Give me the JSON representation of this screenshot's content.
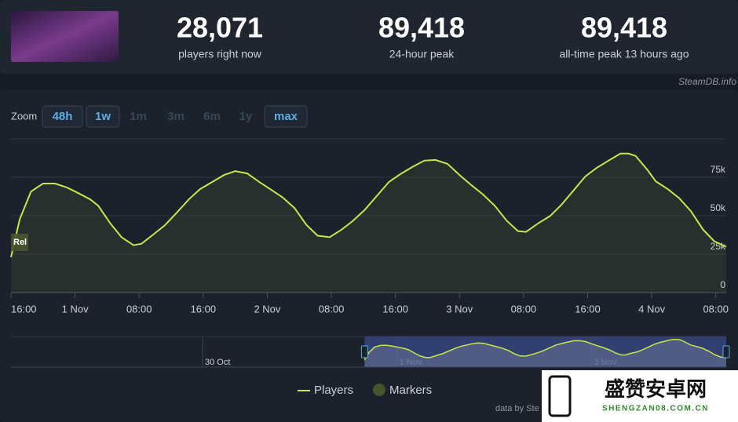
{
  "header": {
    "stats": [
      {
        "value": "28,071",
        "label": "players right now"
      },
      {
        "value": "89,418",
        "label": "24-hour peak"
      },
      {
        "value": "89,418",
        "label": "all-time peak 13 hours ago"
      }
    ],
    "source": "SteamDB.info"
  },
  "zoom": {
    "label": "Zoom",
    "buttons": [
      {
        "text": "48h",
        "enabled": true
      },
      {
        "text": "1w",
        "enabled": true
      },
      {
        "text": "1m",
        "enabled": false
      },
      {
        "text": "3m",
        "enabled": false
      },
      {
        "text": "6m",
        "enabled": false
      },
      {
        "text": "1y",
        "enabled": false
      },
      {
        "text": "max",
        "enabled": true
      }
    ]
  },
  "chart_data": {
    "type": "line",
    "x": [
      0,
      1.1,
      2.5,
      4.0,
      5.5,
      7.0,
      8.4,
      9.9,
      10.9,
      12.4,
      13.8,
      15.3,
      16.3,
      17.7,
      19.2,
      20.7,
      22.2,
      23.6,
      25.1,
      26.6,
      28.0,
      29.5,
      31.0,
      32.5,
      33.9,
      35.4,
      36.9,
      38.3,
      39.8,
      41.3,
      42.7,
      44.2,
      45.7,
      47.2,
      48.6,
      50.1,
      51.6,
      53.0,
      54.5,
      56.0,
      57.5,
      58.9,
      60.4,
      61.9,
      63.3,
      64.3,
      65.8,
      67.3,
      68.7,
      70.2,
      71.7,
      73.1,
      74.6,
      76.1,
      77.1,
      78.0,
      79.5,
      80.5,
      82.0,
      83.4,
      84.9,
      86.4,
      87.8,
      89.3
    ],
    "series": [
      {
        "name": "Players",
        "color": "#c4e84a",
        "values": [
          23000,
          47800,
          65700,
          70900,
          70900,
          68300,
          64700,
          60600,
          56500,
          45000,
          36000,
          30800,
          31800,
          37500,
          43700,
          52000,
          60600,
          67300,
          71900,
          76500,
          79000,
          77500,
          72000,
          66800,
          62000,
          55000,
          44000,
          37000,
          36000,
          41000,
          46700,
          54000,
          63000,
          72000,
          77000,
          81700,
          85800,
          86300,
          83700,
          76500,
          69800,
          64000,
          56500,
          46700,
          40000,
          39500,
          45000,
          49800,
          57000,
          66200,
          75500,
          81000,
          85800,
          90400,
          90400,
          88900,
          79600,
          72400,
          67300,
          61600,
          52900,
          41000,
          33400,
          29800
        ]
      }
    ],
    "markers": {
      "name": "Markers",
      "color": "#46562c",
      "points": [
        {
          "x": 0,
          "label": "Rel"
        }
      ]
    },
    "xlim": [
      0,
      89.3
    ],
    "xticks": [
      {
        "value": 0,
        "label": "16:00"
      },
      {
        "value": 8,
        "label": "1 Nov"
      },
      {
        "value": 16,
        "label": "08:00"
      },
      {
        "value": 24,
        "label": "16:00"
      },
      {
        "value": 32,
        "label": "2 Nov"
      },
      {
        "value": 40,
        "label": "08:00"
      },
      {
        "value": 48,
        "label": "16:00"
      },
      {
        "value": 56,
        "label": "3 Nov"
      },
      {
        "value": 64,
        "label": "08:00"
      },
      {
        "value": 72,
        "label": "16:00"
      },
      {
        "value": 80,
        "label": "4 Nov"
      },
      {
        "value": 88,
        "label": "08:00"
      }
    ],
    "ylim": [
      0,
      100000
    ],
    "yticks": [
      0,
      {
        "value": 25000,
        "label": "25k"
      },
      {
        "value": 50000,
        "label": "50k"
      },
      {
        "value": 75000,
        "label": "75k"
      }
    ],
    "grid": true,
    "navigator": {
      "xlim": [
        -87.3,
        89.3
      ],
      "xticks": [
        {
          "value": -40,
          "label": "30 Oct"
        },
        {
          "value": 8,
          "label": "1 Nov"
        },
        {
          "value": 56,
          "label": "3 Nov"
        }
      ]
    },
    "credit": "data by Ste"
  },
  "watermark": {
    "title": "盛赞安卓网",
    "url": "SHENGZAN08.COM.CN"
  }
}
